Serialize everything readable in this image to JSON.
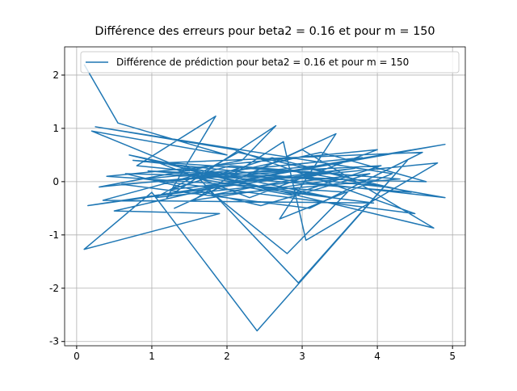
{
  "chart_data": {
    "type": "line",
    "title": "Différence des erreurs pour beta2 = 0.16 et pour m = 150",
    "series": [
      {
        "name": "Différence de prédiction pour beta2 = 0.16 et pour m = 150",
        "color": "#1f77b4",
        "x": [
          0.1,
          0.55,
          2.0,
          0.2,
          1.5,
          0.8,
          1.85,
          1.2,
          2.65,
          2.2,
          0.3,
          3.2,
          4.9,
          2.5,
          0.5,
          1.9,
          0.1,
          1.0,
          2.4,
          4.4,
          2.95,
          1.6,
          3.4,
          0.7,
          4.75,
          3.0,
          1.3,
          3.45,
          2.7,
          4.2,
          0.25,
          2.1,
          4.5,
          0.9,
          3.8,
          1.7,
          2.8,
          3.6,
          0.4,
          4.0,
          2.3,
          1.1,
          4.6,
          3.1,
          0.6,
          2.9,
          4.9,
          1.4,
          2.55,
          3.95,
          0.35,
          2.05,
          4.3,
          1.8,
          3.3,
          0.75,
          4.1,
          2.6,
          1.25,
          3.7,
          0.15,
          2.25,
          4.8,
          3.05,
          2.75,
          1.55,
          3.5,
          0.95,
          4.45,
          2.15,
          1.05,
          3.9,
          2.45,
          0.65,
          4.65,
          3.25,
          1.65,
          2.85,
          4.05,
          1.35
        ],
        "values": [
          2.2,
          1.1,
          0.5,
          0.95,
          0.2,
          0.3,
          1.23,
          -0.3,
          1.05,
          0.4,
          -0.1,
          0.3,
          0.7,
          0.1,
          -0.55,
          -0.6,
          -1.27,
          -0.2,
          -2.8,
          0.4,
          -1.9,
          0.1,
          -0.3,
          0.5,
          -0.87,
          0.6,
          -0.5,
          0.9,
          -0.7,
          0.15,
          1.03,
          0.6,
          -0.6,
          0.05,
          0.45,
          -0.1,
          -1.35,
          -0.2,
          0.1,
          0.6,
          -0.3,
          0.35,
          0.55,
          -0.5,
          -0.05,
          0.2,
          -0.3,
          0.25,
          -0.15,
          -0.4,
          -0.35,
          0.3,
          0.05,
          -0.25,
          0.15,
          0.4,
          -0.1,
          0.45,
          -0.15,
          0.25,
          -0.45,
          0.0,
          0.35,
          -1.1,
          0.75,
          -0.35,
          0.05,
          0.2,
          -0.2,
          0.55,
          -0.3,
          0.15,
          -0.45,
          0.15,
          0.0,
          0.55,
          0.05,
          -0.25,
          0.3,
          0.1
        ]
      }
    ],
    "xlim": [
      -0.16,
      5.17
    ],
    "ylim": [
      -3.08,
      2.53
    ],
    "xticks": [
      0,
      1,
      2,
      3,
      4,
      5
    ],
    "yticks": [
      -3,
      -2,
      -1,
      0,
      1,
      2
    ],
    "grid": true,
    "legend": "upper right"
  }
}
